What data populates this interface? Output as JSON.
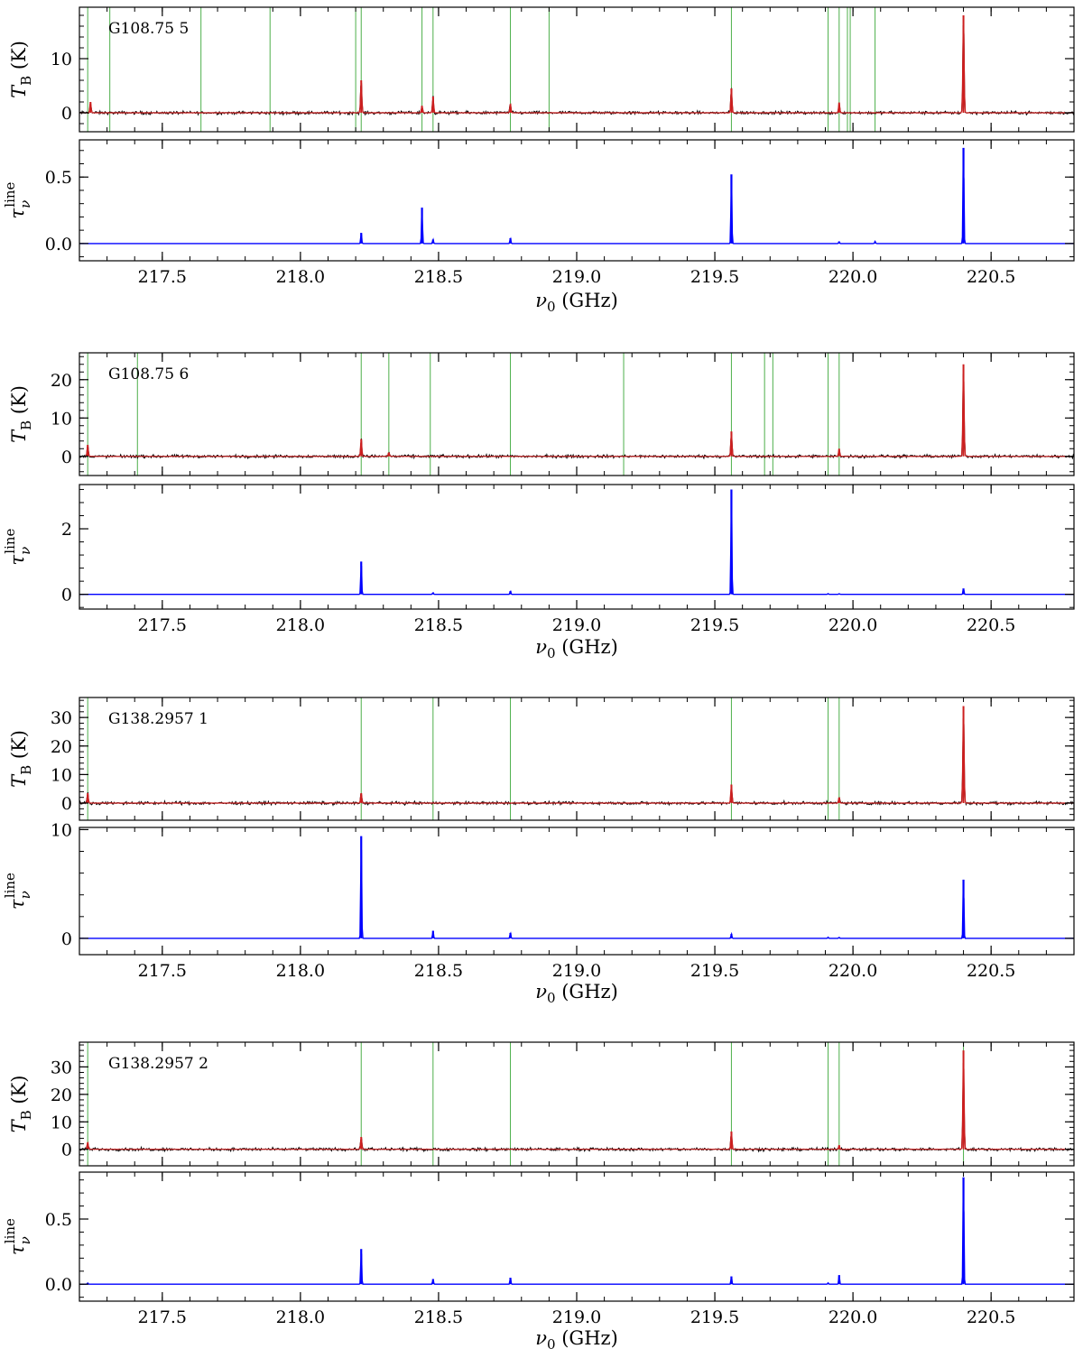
{
  "figure": {
    "x_label": "ν₀ (GHz)",
    "tb_label": "T_B (K)",
    "tau_label": "τ_ν^line",
    "colors": {
      "observed": "#000000",
      "model": "#cc1f1f",
      "tau": "#0000ff",
      "marker": "#4daf4a",
      "frame": "#000000"
    }
  },
  "chart_data": [
    {
      "type": "line",
      "title": "G108.75 5",
      "x_range": [
        217.2,
        220.8
      ],
      "x_ticks": [
        "217.5",
        "218.0",
        "218.5",
        "219.0",
        "219.5",
        "220.0",
        "220.5"
      ],
      "tb": {
        "ylim": [
          -3.5,
          19.5
        ],
        "y_ticks": [
          0,
          10
        ],
        "y_tick_labels": [
          "0",
          "10"
        ],
        "peaks": [
          [
            217.24,
            2.0
          ],
          [
            218.22,
            6.0
          ],
          [
            218.44,
            1.3
          ],
          [
            218.48,
            3.0
          ],
          [
            218.76,
            1.6
          ],
          [
            219.56,
            4.5
          ],
          [
            219.95,
            1.9
          ],
          [
            220.4,
            18.0
          ]
        ],
        "line_markers": [
          217.23,
          217.31,
          217.64,
          217.89,
          218.2,
          218.22,
          218.44,
          218.48,
          218.76,
          218.9,
          219.56,
          219.91,
          219.95,
          219.98,
          219.99,
          220.08
        ]
      },
      "tau": {
        "ylim": [
          -0.13,
          0.78
        ],
        "y_ticks": [
          0.0,
          0.5
        ],
        "y_tick_labels": [
          "0.0",
          "0.5"
        ],
        "peaks": [
          [
            218.22,
            0.08
          ],
          [
            218.44,
            0.27
          ],
          [
            218.48,
            0.03
          ],
          [
            218.76,
            0.04
          ],
          [
            219.56,
            0.52
          ],
          [
            219.95,
            0.015
          ],
          [
            220.08,
            0.015
          ],
          [
            220.4,
            0.72
          ]
        ]
      }
    },
    {
      "type": "line",
      "title": "G108.75 6",
      "x_range": [
        217.2,
        220.8
      ],
      "x_ticks": [
        "217.5",
        "218.0",
        "218.5",
        "219.0",
        "219.5",
        "220.0",
        "220.5"
      ],
      "tb": {
        "ylim": [
          -5,
          27
        ],
        "y_ticks": [
          0,
          10,
          20
        ],
        "y_tick_labels": [
          "0",
          "10",
          "20"
        ],
        "peaks": [
          [
            217.23,
            3.0
          ],
          [
            218.22,
            4.5
          ],
          [
            218.32,
            1.0
          ],
          [
            219.56,
            6.5
          ],
          [
            219.95,
            2.0
          ],
          [
            220.4,
            24.0
          ]
        ],
        "line_markers": [
          217.23,
          217.41,
          218.22,
          218.32,
          218.47,
          218.76,
          219.17,
          219.56,
          219.68,
          219.71,
          219.91,
          219.95
        ]
      },
      "tau": {
        "ylim": [
          -0.45,
          3.35
        ],
        "y_ticks": [
          0,
          2
        ],
        "y_tick_labels": [
          "0",
          "2"
        ],
        "peaks": [
          [
            218.22,
            1.0
          ],
          [
            218.48,
            0.05
          ],
          [
            218.76,
            0.1
          ],
          [
            219.56,
            3.2
          ],
          [
            219.91,
            0.02
          ],
          [
            219.95,
            0.02
          ],
          [
            220.4,
            0.18
          ]
        ]
      }
    },
    {
      "type": "line",
      "title": "G138.2957 1",
      "x_range": [
        217.2,
        220.8
      ],
      "x_ticks": [
        "217.5",
        "218.0",
        "218.5",
        "219.0",
        "219.5",
        "220.0",
        "220.5"
      ],
      "tb": {
        "ylim": [
          -6,
          37
        ],
        "y_ticks": [
          0,
          10,
          20,
          30
        ],
        "y_tick_labels": [
          "0",
          "10",
          "20",
          "30"
        ],
        "peaks": [
          [
            217.23,
            3.5
          ],
          [
            218.22,
            3.5
          ],
          [
            219.56,
            6.5
          ],
          [
            219.95,
            2.0
          ],
          [
            220.4,
            34.0
          ]
        ],
        "line_markers": [
          217.23,
          218.22,
          218.48,
          218.76,
          219.56,
          219.91,
          219.95
        ]
      },
      "tau": {
        "ylim": [
          -1.5,
          10.2
        ],
        "y_ticks": [
          0,
          10
        ],
        "y_tick_labels": [
          "0",
          "10"
        ],
        "peaks": [
          [
            218.22,
            9.4
          ],
          [
            218.48,
            0.7
          ],
          [
            218.76,
            0.5
          ],
          [
            219.56,
            0.4
          ],
          [
            219.91,
            0.1
          ],
          [
            219.95,
            0.1
          ],
          [
            220.4,
            5.4
          ]
        ]
      }
    },
    {
      "type": "line",
      "title": "G138.2957 2",
      "x_range": [
        217.2,
        220.8
      ],
      "x_ticks": [
        "217.5",
        "218.0",
        "218.5",
        "219.0",
        "219.5",
        "220.0",
        "220.5"
      ],
      "tb": {
        "ylim": [
          -6,
          39
        ],
        "y_ticks": [
          0,
          10,
          20,
          30
        ],
        "y_tick_labels": [
          "0",
          "10",
          "20",
          "30"
        ],
        "peaks": [
          [
            217.23,
            2.5
          ],
          [
            218.22,
            4.5
          ],
          [
            219.56,
            6.5
          ],
          [
            219.95,
            1.5
          ],
          [
            220.4,
            36.0
          ]
        ],
        "line_markers": [
          217.23,
          218.22,
          218.48,
          218.76,
          219.56,
          219.91,
          219.95,
          220.4
        ]
      },
      "tau": {
        "ylim": [
          -0.13,
          0.86
        ],
        "y_ticks": [
          0.0,
          0.5
        ],
        "y_tick_labels": [
          "0.0",
          "0.5"
        ],
        "peaks": [
          [
            217.23,
            0.01
          ],
          [
            218.22,
            0.27
          ],
          [
            218.48,
            0.04
          ],
          [
            218.76,
            0.05
          ],
          [
            219.56,
            0.06
          ],
          [
            219.91,
            0.01
          ],
          [
            219.95,
            0.07
          ],
          [
            220.4,
            0.82
          ]
        ]
      }
    }
  ]
}
